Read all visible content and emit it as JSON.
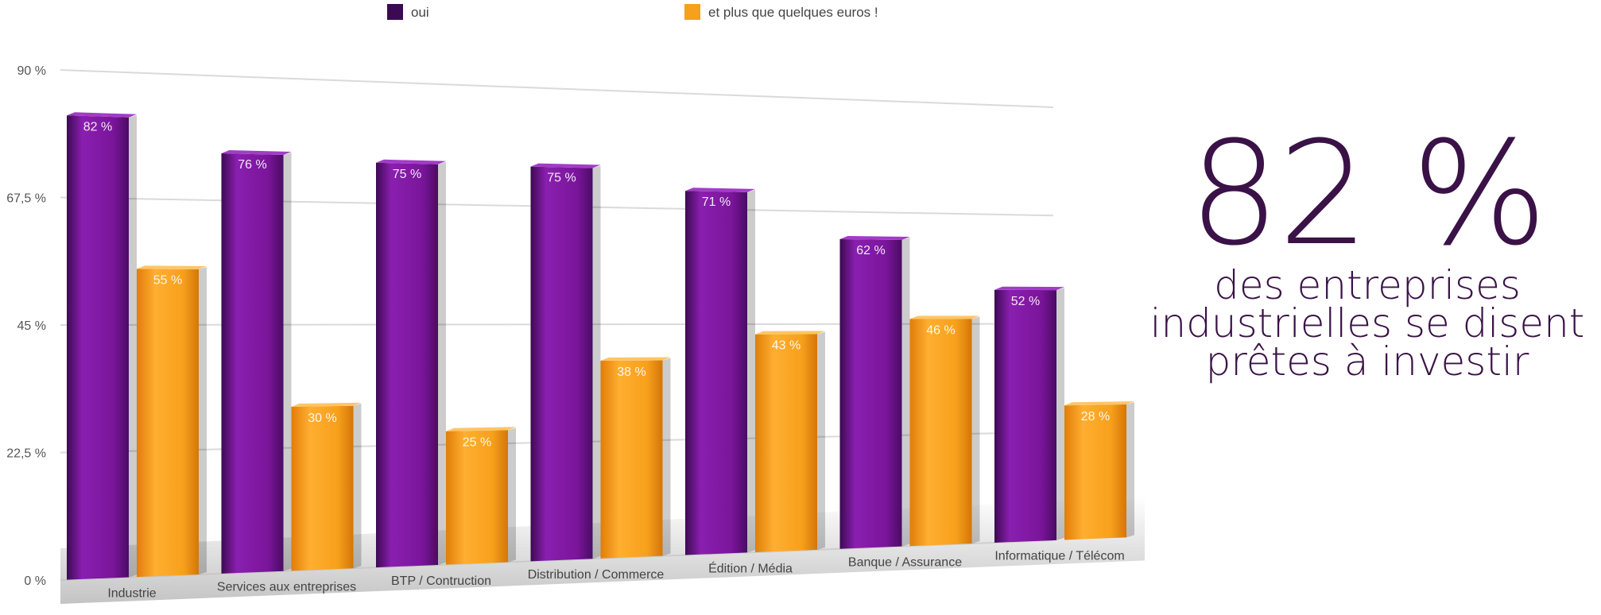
{
  "chart_data": {
    "type": "bar",
    "categories": [
      "Industrie",
      "Services aux entreprises",
      "BTP / Contruction",
      "Distribution / Commerce",
      "Édition / Média",
      "Banque / Assurance",
      "Informatique / Télécom"
    ],
    "series": [
      {
        "name": "oui",
        "color": "#7a159a",
        "values": [
          82,
          76,
          75,
          75,
          71,
          62,
          52
        ],
        "labels": [
          "82 %",
          "76 %",
          "75 %",
          "75 %",
          "71 %",
          "62 %",
          "52 %"
        ]
      },
      {
        "name": "et plus que quelques euros !",
        "color": "#f7a01c",
        "values": [
          55,
          30,
          25,
          38,
          43,
          46,
          28
        ],
        "labels": [
          "55 %",
          "30 %",
          "25 %",
          "38 %",
          "43 %",
          "46 %",
          "28 %"
        ]
      }
    ],
    "yticks": [
      0,
      22.5,
      45,
      67.5,
      90
    ],
    "ytick_labels": [
      "0 %",
      "22,5 %",
      "45 %",
      "67,5 %",
      "90 %"
    ],
    "ylim": [
      0,
      90
    ],
    "legend": "top",
    "grid": true
  },
  "callout": {
    "value": "82 %",
    "text_line1": "des entreprises",
    "text_line2": "industrielles se disent",
    "text_line3": "prêtes à investir"
  }
}
